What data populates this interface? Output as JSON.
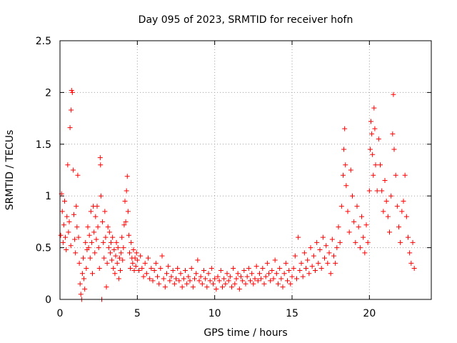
{
  "chart_data": {
    "type": "scatter",
    "title": "Day 095 of 2023, SRMTID for receiver hofn",
    "xlabel": "GPS time / hours",
    "ylabel": "SRMTID / TECUs",
    "xlim": [
      0,
      24
    ],
    "ylim": [
      0,
      2.5
    ],
    "xticks": [
      0,
      5,
      10,
      15,
      20
    ],
    "yticks": [
      0,
      0.5,
      1,
      1.5,
      2,
      2.5
    ],
    "xtick_labels": [
      "0",
      "5",
      "10",
      "15",
      "20"
    ],
    "ytick_labels": [
      "0",
      "0.5",
      "1",
      "1.5",
      "2",
      "2.5"
    ],
    "grid": true,
    "marker": "plus",
    "color": "#ff0000",
    "series": [
      {
        "name": "SRMTID",
        "points": [
          [
            0.05,
            0.62
          ],
          [
            0.1,
            1.02
          ],
          [
            0.15,
            0.85
          ],
          [
            0.2,
            0.55
          ],
          [
            0.25,
            0.72
          ],
          [
            0.3,
            0.95
          ],
          [
            0.35,
            0.6
          ],
          [
            0.4,
            0.48
          ],
          [
            0.45,
            0.8
          ],
          [
            0.5,
            1.3
          ],
          [
            0.55,
            0.65
          ],
          [
            0.6,
            0.75
          ],
          [
            0.65,
            1.66
          ],
          [
            0.7,
            0.52
          ],
          [
            0.72,
            1.83
          ],
          [
            0.75,
            2.02
          ],
          [
            0.8,
            2.0
          ],
          [
            0.85,
            1.25
          ],
          [
            0.9,
            0.82
          ],
          [
            0.95,
            0.58
          ],
          [
            1.0,
            0.45
          ],
          [
            1.05,
            0.9
          ],
          [
            1.1,
            0.7
          ],
          [
            1.15,
            1.2
          ],
          [
            1.2,
            0.6
          ],
          [
            1.25,
            0.35
          ],
          [
            1.3,
            0.15
          ],
          [
            1.35,
            0.05
          ],
          [
            1.4,
            0.0
          ],
          [
            1.45,
            0.25
          ],
          [
            1.5,
            0.4
          ],
          [
            1.55,
            0.2
          ],
          [
            1.6,
            0.1
          ],
          [
            1.65,
            0.55
          ],
          [
            1.7,
            0.3
          ],
          [
            1.75,
            0.48
          ],
          [
            1.8,
            0.7
          ],
          [
            1.85,
            0.5
          ],
          [
            1.9,
            0.62
          ],
          [
            1.95,
            0.4
          ],
          [
            2.0,
            0.85
          ],
          [
            2.05,
            0.55
          ],
          [
            2.1,
            0.25
          ],
          [
            2.15,
            0.9
          ],
          [
            2.2,
            0.65
          ],
          [
            2.25,
            0.45
          ],
          [
            2.3,
            0.8
          ],
          [
            2.35,
            0.58
          ],
          [
            2.4,
            0.9
          ],
          [
            2.45,
            0.7
          ],
          [
            2.5,
            0.5
          ],
          [
            2.55,
            0.3
          ],
          [
            2.6,
            1.37
          ],
          [
            2.62,
            1.3
          ],
          [
            2.65,
            1.0
          ],
          [
            2.7,
            0.0
          ],
          [
            2.75,
            0.75
          ],
          [
            2.8,
            0.55
          ],
          [
            2.85,
            0.4
          ],
          [
            2.9,
            0.85
          ],
          [
            2.95,
            0.6
          ],
          [
            3.0,
            0.12
          ],
          [
            3.05,
            0.35
          ],
          [
            3.1,
            0.7
          ],
          [
            3.15,
            0.5
          ],
          [
            3.2,
            0.65
          ],
          [
            3.25,
            0.45
          ],
          [
            3.3,
            0.55
          ],
          [
            3.35,
            0.38
          ],
          [
            3.4,
            0.6
          ],
          [
            3.45,
            0.3
          ],
          [
            3.5,
            0.48
          ],
          [
            3.55,
            0.25
          ],
          [
            3.6,
            0.42
          ],
          [
            3.65,
            0.55
          ],
          [
            3.7,
            0.35
          ],
          [
            3.75,
            0.5
          ],
          [
            3.8,
            0.2
          ],
          [
            3.85,
            0.4
          ],
          [
            3.9,
            0.28
          ],
          [
            3.95,
            0.45
          ],
          [
            4.0,
            0.6
          ],
          [
            4.05,
            0.38
          ],
          [
            4.1,
            0.5
          ],
          [
            4.15,
            0.72
          ],
          [
            4.2,
            0.95
          ],
          [
            4.25,
            0.75
          ],
          [
            4.3,
            1.05
          ],
          [
            4.35,
            1.19
          ],
          [
            4.4,
            0.85
          ],
          [
            4.45,
            0.62
          ],
          [
            4.5,
            0.45
          ],
          [
            4.55,
            0.3
          ],
          [
            4.6,
            0.55
          ],
          [
            4.65,
            0.4
          ],
          [
            4.7,
            0.35
          ],
          [
            4.75,
            0.48
          ],
          [
            4.8,
            0.28
          ],
          [
            4.85,
            0.4
          ],
          [
            4.9,
            0.32
          ],
          [
            4.95,
            0.45
          ],
          [
            5.0,
            0.38
          ],
          [
            5.1,
            0.28
          ],
          [
            5.2,
            0.42
          ],
          [
            5.3,
            0.3
          ],
          [
            5.4,
            0.22
          ],
          [
            5.5,
            0.35
          ],
          [
            5.6,
            0.25
          ],
          [
            5.7,
            0.4
          ],
          [
            5.8,
            0.2
          ],
          [
            5.9,
            0.3
          ],
          [
            6.0,
            0.18
          ],
          [
            6.1,
            0.28
          ],
          [
            6.2,
            0.35
          ],
          [
            6.3,
            0.22
          ],
          [
            6.4,
            0.15
          ],
          [
            6.5,
            0.3
          ],
          [
            6.6,
            0.42
          ],
          [
            6.7,
            0.2
          ],
          [
            6.8,
            0.12
          ],
          [
            6.9,
            0.25
          ],
          [
            7.0,
            0.32
          ],
          [
            7.1,
            0.18
          ],
          [
            7.2,
            0.22
          ],
          [
            7.3,
            0.28
          ],
          [
            7.4,
            0.15
          ],
          [
            7.5,
            0.2
          ],
          [
            7.6,
            0.3
          ],
          [
            7.7,
            0.18
          ],
          [
            7.8,
            0.25
          ],
          [
            7.9,
            0.12
          ],
          [
            8.0,
            0.2
          ],
          [
            8.1,
            0.28
          ],
          [
            8.2,
            0.15
          ],
          [
            8.3,
            0.22
          ],
          [
            8.4,
            0.18
          ],
          [
            8.5,
            0.3
          ],
          [
            8.6,
            0.12
          ],
          [
            8.7,
            0.2
          ],
          [
            8.8,
            0.25
          ],
          [
            8.9,
            0.38
          ],
          [
            9.0,
            0.18
          ],
          [
            9.1,
            0.22
          ],
          [
            9.2,
            0.15
          ],
          [
            9.3,
            0.28
          ],
          [
            9.4,
            0.2
          ],
          [
            9.5,
            0.12
          ],
          [
            9.6,
            0.25
          ],
          [
            9.7,
            0.18
          ],
          [
            9.8,
            0.3
          ],
          [
            9.9,
            0.15
          ],
          [
            10.0,
            0.2
          ],
          [
            10.1,
            0.1
          ],
          [
            10.2,
            0.22
          ],
          [
            10.3,
            0.18
          ],
          [
            10.4,
            0.28
          ],
          [
            10.5,
            0.12
          ],
          [
            10.6,
            0.2
          ],
          [
            10.7,
            0.15
          ],
          [
            10.8,
            0.25
          ],
          [
            10.9,
            0.18
          ],
          [
            11.0,
            0.22
          ],
          [
            11.1,
            0.12
          ],
          [
            11.2,
            0.3
          ],
          [
            11.3,
            0.15
          ],
          [
            11.4,
            0.2
          ],
          [
            11.5,
            0.25
          ],
          [
            11.6,
            0.1
          ],
          [
            11.7,
            0.22
          ],
          [
            11.8,
            0.18
          ],
          [
            11.9,
            0.28
          ],
          [
            12.0,
            0.15
          ],
          [
            12.1,
            0.22
          ],
          [
            12.2,
            0.3
          ],
          [
            12.3,
            0.18
          ],
          [
            12.4,
            0.25
          ],
          [
            12.5,
            0.15
          ],
          [
            12.6,
            0.2
          ],
          [
            12.7,
            0.32
          ],
          [
            12.8,
            0.18
          ],
          [
            12.9,
            0.25
          ],
          [
            13.0,
            0.2
          ],
          [
            13.1,
            0.3
          ],
          [
            13.2,
            0.15
          ],
          [
            13.3,
            0.22
          ],
          [
            13.4,
            0.35
          ],
          [
            13.5,
            0.25
          ],
          [
            13.6,
            0.18
          ],
          [
            13.7,
            0.28
          ],
          [
            13.8,
            0.2
          ],
          [
            13.9,
            0.38
          ],
          [
            14.0,
            0.25
          ],
          [
            14.1,
            0.15
          ],
          [
            14.2,
            0.3
          ],
          [
            14.3,
            0.2
          ],
          [
            14.4,
            0.12
          ],
          [
            14.5,
            0.25
          ],
          [
            14.6,
            0.35
          ],
          [
            14.7,
            0.18
          ],
          [
            14.8,
            0.28
          ],
          [
            14.9,
            0.15
          ],
          [
            15.0,
            0.22
          ],
          [
            15.1,
            0.3
          ],
          [
            15.2,
            0.42
          ],
          [
            15.3,
            0.2
          ],
          [
            15.4,
            0.6
          ],
          [
            15.5,
            0.28
          ],
          [
            15.6,
            0.35
          ],
          [
            15.7,
            0.22
          ],
          [
            15.8,
            0.45
          ],
          [
            15.9,
            0.3
          ],
          [
            16.0,
            0.38
          ],
          [
            16.1,
            0.25
          ],
          [
            16.2,
            0.5
          ],
          [
            16.3,
            0.32
          ],
          [
            16.4,
            0.42
          ],
          [
            16.5,
            0.28
          ],
          [
            16.6,
            0.55
          ],
          [
            16.7,
            0.35
          ],
          [
            16.8,
            0.48
          ],
          [
            16.9,
            0.3
          ],
          [
            17.0,
            0.6
          ],
          [
            17.1,
            0.4
          ],
          [
            17.2,
            0.52
          ],
          [
            17.3,
            0.35
          ],
          [
            17.4,
            0.45
          ],
          [
            17.5,
            0.25
          ],
          [
            17.6,
            0.58
          ],
          [
            17.7,
            0.42
          ],
          [
            17.8,
            0.35
          ],
          [
            17.9,
            0.5
          ],
          [
            18.0,
            0.7
          ],
          [
            18.1,
            0.55
          ],
          [
            18.2,
            0.9
          ],
          [
            18.3,
            1.2
          ],
          [
            18.35,
            1.45
          ],
          [
            18.4,
            1.65
          ],
          [
            18.45,
            1.3
          ],
          [
            18.5,
            1.1
          ],
          [
            18.6,
            0.85
          ],
          [
            18.7,
            0.65
          ],
          [
            18.8,
            1.25
          ],
          [
            18.9,
            1.0
          ],
          [
            19.0,
            0.75
          ],
          [
            19.1,
            0.55
          ],
          [
            19.2,
            0.9
          ],
          [
            19.3,
            0.7
          ],
          [
            19.4,
            0.5
          ],
          [
            19.5,
            0.8
          ],
          [
            19.6,
            0.6
          ],
          [
            19.7,
            0.45
          ],
          [
            19.8,
            0.72
          ],
          [
            19.9,
            0.55
          ],
          [
            20.0,
            1.05
          ],
          [
            20.05,
            1.45
          ],
          [
            20.1,
            1.72
          ],
          [
            20.15,
            1.6
          ],
          [
            20.2,
            1.4
          ],
          [
            20.25,
            1.2
          ],
          [
            20.3,
            1.85
          ],
          [
            20.35,
            1.65
          ],
          [
            20.4,
            1.3
          ],
          [
            20.5,
            1.05
          ],
          [
            20.6,
            1.55
          ],
          [
            20.7,
            1.3
          ],
          [
            20.8,
            1.05
          ],
          [
            20.9,
            0.85
          ],
          [
            21.0,
            1.15
          ],
          [
            21.1,
            0.95
          ],
          [
            21.2,
            0.8
          ],
          [
            21.3,
            0.65
          ],
          [
            21.4,
            1.0
          ],
          [
            21.5,
            1.6
          ],
          [
            21.55,
            1.98
          ],
          [
            21.6,
            1.45
          ],
          [
            21.7,
            1.2
          ],
          [
            21.8,
            0.9
          ],
          [
            21.9,
            0.7
          ],
          [
            22.0,
            0.55
          ],
          [
            22.1,
            0.85
          ],
          [
            22.2,
            0.95
          ],
          [
            22.3,
            1.2
          ],
          [
            22.4,
            0.8
          ],
          [
            22.5,
            0.6
          ],
          [
            22.6,
            0.45
          ],
          [
            22.7,
            0.35
          ],
          [
            22.8,
            0.55
          ],
          [
            22.9,
            0.3
          ]
        ]
      }
    ]
  }
}
